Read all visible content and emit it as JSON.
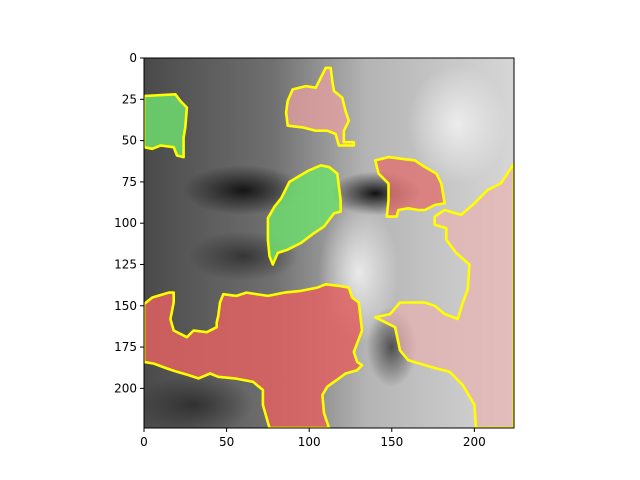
{
  "chart_data": {
    "type": "heatmap",
    "title": "",
    "xlabel": "",
    "ylabel": "",
    "xlim": [
      0,
      224
    ],
    "ylim": [
      224,
      0
    ],
    "y_inverted": true,
    "grid": false,
    "legend": "none",
    "x_ticks": [
      0,
      50,
      100,
      150,
      200
    ],
    "y_ticks": [
      0,
      25,
      50,
      75,
      100,
      125,
      150,
      175,
      200
    ],
    "background_image": "grayscale-face-closeup",
    "overlay_regions": [
      {
        "sign": "positive",
        "color": "#6fdc6f",
        "alpha": 0.85,
        "points": [
          [
            0,
            23
          ],
          [
            19,
            22
          ],
          [
            22,
            26
          ],
          [
            26,
            30
          ],
          [
            25,
            42
          ],
          [
            24,
            48
          ],
          [
            24,
            60
          ],
          [
            20,
            59
          ],
          [
            18,
            54
          ],
          [
            10,
            53
          ],
          [
            5,
            55
          ],
          [
            0,
            54
          ]
        ]
      },
      {
        "sign": "positive",
        "color": "#6fdc6f",
        "alpha": 0.85,
        "points": [
          [
            88,
            75
          ],
          [
            100,
            68
          ],
          [
            107,
            65
          ],
          [
            112,
            66
          ],
          [
            117,
            70
          ],
          [
            118,
            78
          ],
          [
            119,
            86
          ],
          [
            119,
            93
          ],
          [
            115,
            94
          ],
          [
            109,
            102
          ],
          [
            103,
            106
          ],
          [
            95,
            112
          ],
          [
            87,
            116
          ],
          [
            81,
            118
          ],
          [
            78,
            125
          ],
          [
            76,
            120
          ],
          [
            75,
            110
          ],
          [
            75,
            97
          ],
          [
            79,
            90
          ],
          [
            83,
            85
          ]
        ]
      },
      {
        "sign": "negative",
        "color": "#e8a0a0",
        "alpha": 0.75,
        "points": [
          [
            90,
            19
          ],
          [
            98,
            17
          ],
          [
            104,
            18
          ],
          [
            107,
            12
          ],
          [
            110,
            6
          ],
          [
            113,
            6
          ],
          [
            114,
            14
          ],
          [
            115,
            20
          ],
          [
            120,
            24
          ],
          [
            122,
            32
          ],
          [
            124,
            38
          ],
          [
            121,
            44
          ],
          [
            121,
            51
          ],
          [
            127,
            51
          ],
          [
            127,
            53
          ],
          [
            118,
            53
          ],
          [
            116,
            46
          ],
          [
            111,
            44
          ],
          [
            104,
            44
          ],
          [
            96,
            42
          ],
          [
            87,
            41
          ],
          [
            86,
            33
          ],
          [
            87,
            26
          ]
        ]
      },
      {
        "sign": "negative",
        "color": "#e07070",
        "alpha": 0.8,
        "points": [
          [
            140,
            62
          ],
          [
            148,
            60
          ],
          [
            156,
            61
          ],
          [
            164,
            62
          ],
          [
            170,
            66
          ],
          [
            177,
            70
          ],
          [
            180,
            76
          ],
          [
            182,
            88
          ],
          [
            176,
            89
          ],
          [
            170,
            92
          ],
          [
            166,
            92
          ],
          [
            160,
            91
          ],
          [
            154,
            92
          ],
          [
            153,
            96
          ],
          [
            147,
            96
          ],
          [
            148,
            86
          ],
          [
            148,
            76
          ],
          [
            142,
            70
          ]
        ]
      },
      {
        "sign": "negative",
        "color": "#e8b0b0",
        "alpha": 0.7,
        "points": [
          [
            224,
            64
          ],
          [
            224,
            224
          ],
          [
            201,
            224
          ],
          [
            200,
            210
          ],
          [
            193,
            198
          ],
          [
            185,
            190
          ],
          [
            177,
            188
          ],
          [
            160,
            183
          ],
          [
            155,
            177
          ],
          [
            152,
            163
          ],
          [
            140,
            157
          ],
          [
            149,
            155
          ],
          [
            155,
            148
          ],
          [
            170,
            148
          ],
          [
            176,
            150
          ],
          [
            182,
            155
          ],
          [
            190,
            158
          ],
          [
            193,
            148
          ],
          [
            196,
            140
          ],
          [
            197,
            125
          ],
          [
            189,
            118
          ],
          [
            183,
            110
          ],
          [
            183,
            103
          ],
          [
            176,
            101
          ],
          [
            176,
            96
          ],
          [
            182,
            92
          ],
          [
            192,
            95
          ],
          [
            200,
            88
          ],
          [
            208,
            80
          ],
          [
            216,
            76
          ]
        ]
      },
      {
        "sign": "negative",
        "color": "#e06060",
        "alpha": 0.85,
        "points": [
          [
            0,
            149
          ],
          [
            5,
            145
          ],
          [
            15,
            142
          ],
          [
            18,
            142
          ],
          [
            18,
            148
          ],
          [
            16,
            158
          ],
          [
            18,
            165
          ],
          [
            26,
            169
          ],
          [
            30,
            165
          ],
          [
            38,
            166
          ],
          [
            44,
            163
          ],
          [
            44,
            160
          ],
          [
            45,
            156
          ],
          [
            46,
            148
          ],
          [
            48,
            143
          ],
          [
            56,
            144
          ],
          [
            62,
            142
          ],
          [
            75,
            144
          ],
          [
            85,
            142
          ],
          [
            95,
            141
          ],
          [
            105,
            139
          ],
          [
            110,
            137
          ],
          [
            118,
            138
          ],
          [
            124,
            139
          ],
          [
            126,
            145
          ],
          [
            130,
            148
          ],
          [
            132,
            165
          ],
          [
            127,
            178
          ],
          [
            129,
            184
          ],
          [
            132,
            186
          ],
          [
            129,
            189
          ],
          [
            122,
            191
          ],
          [
            118,
            194
          ],
          [
            111,
            199
          ],
          [
            108,
            204
          ],
          [
            109,
            215
          ],
          [
            112,
            224
          ],
          [
            76,
            224
          ],
          [
            72,
            210
          ],
          [
            72,
            201
          ],
          [
            66,
            196
          ],
          [
            55,
            194
          ],
          [
            45,
            193
          ],
          [
            40,
            191
          ],
          [
            33,
            194
          ],
          [
            27,
            192
          ],
          [
            20,
            190
          ],
          [
            14,
            188
          ],
          [
            6,
            185
          ],
          [
            0,
            184
          ]
        ]
      }
    ]
  }
}
